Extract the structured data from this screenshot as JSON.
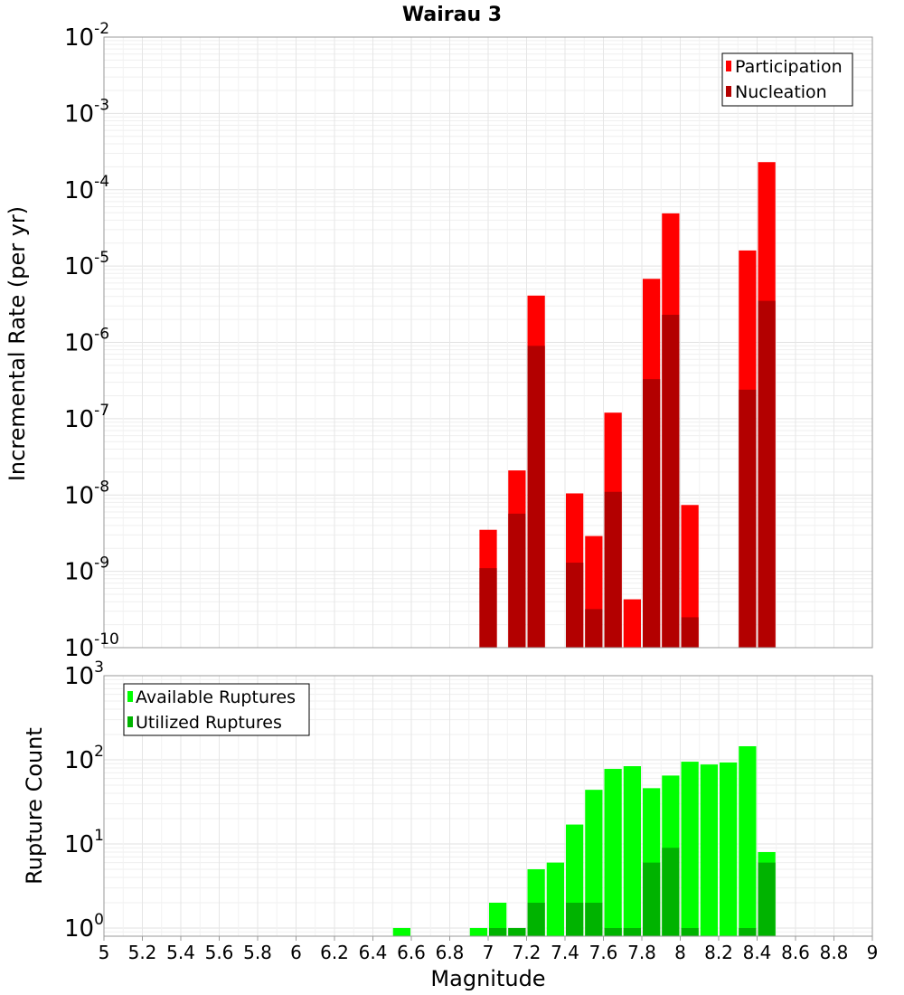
{
  "chart_data": [
    {
      "type": "bar",
      "title": "Wairau 3",
      "ylabel": "Incremental Rate (per yr)",
      "yscale": "log",
      "ylim": [
        1e-10,
        0.01
      ],
      "xlim": [
        5,
        9
      ],
      "grid": true,
      "legend_position": "top-right",
      "ytick_labels": [
        {
          "base": "10",
          "exp": "-10"
        },
        {
          "base": "10",
          "exp": "-9"
        },
        {
          "base": "10",
          "exp": "-8"
        },
        {
          "base": "10",
          "exp": "-7"
        },
        {
          "base": "10",
          "exp": "-6"
        },
        {
          "base": "10",
          "exp": "-5"
        },
        {
          "base": "10",
          "exp": "-4"
        },
        {
          "base": "10",
          "exp": "-3"
        },
        {
          "base": "10",
          "exp": "-2"
        }
      ],
      "series": [
        {
          "name": "Participation",
          "color": "#ff0000",
          "x": [
            7.0,
            7.15,
            7.25,
            7.45,
            7.55,
            7.65,
            7.75,
            7.85,
            7.95,
            8.05,
            8.35,
            8.45
          ],
          "values": [
            3.5e-09,
            2.1e-08,
            4.1e-06,
            1.05e-08,
            2.9e-09,
            1.2e-07,
            4.3e-10,
            6.8e-06,
            4.9e-05,
            7.4e-09,
            1.6e-05,
            0.00023
          ]
        },
        {
          "name": "Nucleation",
          "color": "#b30000",
          "x": [
            7.0,
            7.15,
            7.25,
            7.45,
            7.55,
            7.65,
            7.85,
            7.95,
            8.05,
            8.35,
            8.45
          ],
          "values": [
            1.1e-09,
            5.7e-09,
            9e-07,
            1.3e-09,
            3.2e-10,
            1.1e-08,
            3.3e-07,
            2.3e-06,
            2.5e-10,
            2.4e-07,
            3.5e-06
          ]
        }
      ]
    },
    {
      "type": "bar",
      "title": "",
      "xlabel": "Magnitude",
      "ylabel": "Rupture Count",
      "yscale": "log",
      "ylim": [
        0.8,
        1000
      ],
      "xlim": [
        5,
        9
      ],
      "grid": true,
      "legend_position": "top-left",
      "x_ticks": [
        "5",
        "5.2",
        "5.4",
        "5.6",
        "5.8",
        "6",
        "6.2",
        "6.4",
        "6.6",
        "6.8",
        "7",
        "7.2",
        "7.4",
        "7.6",
        "7.8",
        "8",
        "8.2",
        "8.4",
        "8.6",
        "8.8",
        "9"
      ],
      "ytick_labels": [
        {
          "base": "10",
          "exp": "0"
        },
        {
          "base": "10",
          "exp": "1"
        },
        {
          "base": "10",
          "exp": "2"
        },
        {
          "base": "10",
          "exp": "3"
        }
      ],
      "series": [
        {
          "name": "Available Ruptures",
          "color": "#00ff00",
          "x": [
            6.55,
            6.95,
            7.05,
            7.15,
            7.25,
            7.35,
            7.45,
            7.55,
            7.65,
            7.75,
            7.85,
            7.95,
            8.05,
            8.15,
            8.25,
            8.35,
            8.45
          ],
          "values": [
            1,
            1,
            2,
            1,
            5,
            6,
            17,
            44,
            78,
            84,
            46,
            65,
            95,
            88,
            93,
            145,
            8
          ]
        },
        {
          "name": "Utilized Ruptures",
          "color": "#00b300",
          "x": [
            7.05,
            7.15,
            7.25,
            7.45,
            7.55,
            7.65,
            7.75,
            7.85,
            7.95,
            8.05,
            8.35,
            8.45
          ],
          "values": [
            1,
            1,
            2,
            2,
            2,
            1,
            1,
            6,
            9,
            1,
            1,
            6
          ]
        }
      ]
    }
  ]
}
